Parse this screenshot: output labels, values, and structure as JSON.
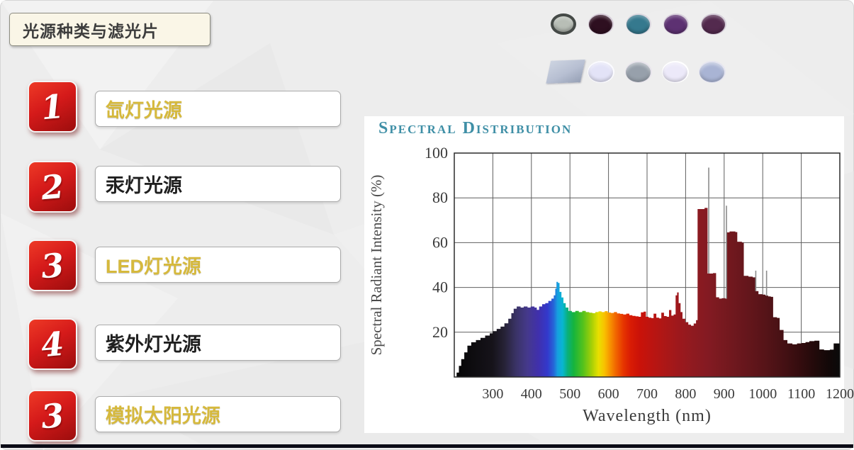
{
  "slide": {
    "title": "光源种类与滤光片",
    "items": [
      {
        "number": "1",
        "label": "氙灯光源",
        "style": "gold"
      },
      {
        "number": "2",
        "label": "汞灯光源",
        "style": "black"
      },
      {
        "number": "3",
        "label": "LED灯光源",
        "style": "gold"
      },
      {
        "number": "4",
        "label": "紫外灯光源",
        "style": "black"
      },
      {
        "number": "3",
        "label": "模拟太阳光源",
        "style": "gold"
      }
    ],
    "colors": {
      "badge_red": "#d51a1a",
      "gold_text": "#d6b93c",
      "black_text": "#1f1f1f",
      "title_teal": "#3f8fa6",
      "bottom_bar": "#0b0b16",
      "background": "#ededed"
    }
  },
  "filters_image": {
    "top_row": [
      {
        "name": "gray-nd-filter",
        "fill": "#b8beb6",
        "ring": "#454a47"
      },
      {
        "name": "dark-maroon-filter",
        "fill": "#2e0f20",
        "ring": "#d6ccd8"
      },
      {
        "name": "teal-filter",
        "fill": "#35798e",
        "ring": "#dcd8e0"
      },
      {
        "name": "purple-filter",
        "fill": "#5d3172",
        "ring": "#d8d0dc"
      },
      {
        "name": "plum-filter",
        "fill": "#532a4e",
        "ring": "#d4ccd8"
      }
    ],
    "bottom_square": {
      "name": "light-blue-square-filter",
      "fill": "#b7bfd2"
    },
    "bottom_row": [
      {
        "name": "pale-lavender-filter",
        "fill": "#e3e3f7",
        "ring": "#fbfbff"
      },
      {
        "name": "gray-blue-filter",
        "fill": "#97a0ab",
        "ring": "#e8e4ec"
      },
      {
        "name": "near-white-filter",
        "fill": "#ece9f9",
        "ring": "#ffffff"
      },
      {
        "name": "periwinkle-filter",
        "fill": "#a9b4d4",
        "ring": "#e4e4f0"
      }
    ]
  },
  "chart_data": {
    "type": "area",
    "title": "Spectral Distribution",
    "xlabel": "Wavelength (nm)",
    "ylabel": "Spectral Radiant Intensity (%)",
    "xlim": [
      200,
      1200
    ],
    "ylim": [
      0,
      100
    ],
    "xticks": [
      300,
      400,
      500,
      600,
      700,
      800,
      900,
      1000,
      1100,
      1200
    ],
    "yticks": [
      20,
      40,
      60,
      80,
      100
    ],
    "grid": true,
    "legend": "none",
    "profile": [
      [
        200,
        0
      ],
      [
        206,
        2
      ],
      [
        212,
        5
      ],
      [
        218,
        8
      ],
      [
        226,
        11
      ],
      [
        234,
        14
      ],
      [
        244,
        15.5
      ],
      [
        256,
        16.5
      ],
      [
        268,
        17.5
      ],
      [
        280,
        18.5
      ],
      [
        292,
        19.5
      ],
      [
        300,
        20.5
      ],
      [
        310,
        21.5
      ],
      [
        320,
        22.5
      ],
      [
        330,
        24
      ],
      [
        340,
        26
      ],
      [
        348,
        28.5
      ],
      [
        354,
        30.5
      ],
      [
        362,
        31.5
      ],
      [
        372,
        31
      ],
      [
        380,
        31.5
      ],
      [
        390,
        31
      ],
      [
        398,
        31.5
      ],
      [
        408,
        31
      ],
      [
        414,
        30
      ],
      [
        420,
        31.5
      ],
      [
        428,
        32.5
      ],
      [
        436,
        33
      ],
      [
        444,
        34
      ],
      [
        452,
        35
      ],
      [
        458,
        36.5
      ],
      [
        462,
        39.5
      ],
      [
        465,
        42.5
      ],
      [
        469,
        42
      ],
      [
        473,
        38
      ],
      [
        478,
        35.5
      ],
      [
        483,
        33
      ],
      [
        489,
        31
      ],
      [
        496,
        29.5
      ],
      [
        505,
        29
      ],
      [
        514,
        29.5
      ],
      [
        523,
        29
      ],
      [
        532,
        29.5
      ],
      [
        541,
        29
      ],
      [
        550,
        28.7
      ],
      [
        558,
        28.5
      ],
      [
        566,
        29
      ],
      [
        574,
        29.3
      ],
      [
        582,
        29
      ],
      [
        590,
        29.4
      ],
      [
        598,
        28.8
      ],
      [
        606,
        28.6
      ],
      [
        614,
        29
      ],
      [
        622,
        28.4
      ],
      [
        630,
        28.2
      ],
      [
        638,
        27.9
      ],
      [
        646,
        28.3
      ],
      [
        654,
        27.6
      ],
      [
        662,
        27.3
      ],
      [
        670,
        27.1
      ],
      [
        678,
        26.9
      ],
      [
        684,
        28.9
      ],
      [
        691,
        29.2
      ],
      [
        697,
        26.9
      ],
      [
        704,
        26.5
      ],
      [
        711,
        26.3
      ],
      [
        717,
        28.3
      ],
      [
        724,
        26.5
      ],
      [
        731,
        26.2
      ],
      [
        737,
        28.7
      ],
      [
        744,
        27.2
      ],
      [
        751,
        26.9
      ],
      [
        757,
        29.9
      ],
      [
        763,
        27.4
      ],
      [
        769,
        27.9
      ],
      [
        774,
        36.5
      ],
      [
        778,
        37.8
      ],
      [
        782,
        33
      ],
      [
        787,
        29
      ],
      [
        792,
        26
      ],
      [
        799,
        24.5
      ],
      [
        807,
        23.4
      ],
      [
        814,
        22.9
      ],
      [
        821,
        23.9
      ],
      [
        827,
        25.4
      ],
      [
        831,
        75
      ],
      [
        849,
        75.5
      ],
      [
        857,
        46.2
      ],
      [
        871,
        46.4
      ],
      [
        879,
        35.6
      ],
      [
        887,
        35
      ],
      [
        894,
        35.2
      ],
      [
        903,
        35
      ],
      [
        907,
        64.6
      ],
      [
        914,
        65
      ],
      [
        929,
        64.7
      ],
      [
        934,
        60.4
      ],
      [
        946,
        60
      ],
      [
        951,
        45.2
      ],
      [
        963,
        44.8
      ],
      [
        974,
        44.5
      ],
      [
        981,
        38.4
      ],
      [
        989,
        37
      ],
      [
        999,
        36.8
      ],
      [
        1007,
        36.4
      ],
      [
        1014,
        36
      ],
      [
        1021,
        35.8
      ],
      [
        1027,
        26.7
      ],
      [
        1037,
        26.4
      ],
      [
        1044,
        21
      ],
      [
        1054,
        16.5
      ],
      [
        1064,
        15
      ],
      [
        1077,
        14.6
      ],
      [
        1089,
        15
      ],
      [
        1101,
        15.2
      ],
      [
        1111,
        15.6
      ],
      [
        1121,
        16
      ],
      [
        1134,
        16.2
      ],
      [
        1147,
        12.3
      ],
      [
        1159,
        12
      ],
      [
        1174,
        12.2
      ],
      [
        1184,
        15
      ],
      [
        1200,
        15.2
      ]
    ],
    "spikes": [
      [
        860,
        46.2,
        93.5
      ],
      [
        906,
        35,
        76.5
      ],
      [
        982,
        38.4,
        47.5
      ],
      [
        1010,
        36.2,
        47.5
      ]
    ],
    "spectrum_stops": [
      [
        200,
        "#060606"
      ],
      [
        300,
        "#16131a"
      ],
      [
        330,
        "#262236"
      ],
      [
        360,
        "#3a3366"
      ],
      [
        390,
        "#45398c"
      ],
      [
        418,
        "#4030ac"
      ],
      [
        442,
        "#3339cc"
      ],
      [
        458,
        "#2566d8"
      ],
      [
        468,
        "#169fe0"
      ],
      [
        481,
        "#08b6d0"
      ],
      [
        494,
        "#0ab07a"
      ],
      [
        510,
        "#16b43c"
      ],
      [
        534,
        "#54c21c"
      ],
      [
        557,
        "#a8d006"
      ],
      [
        574,
        "#e8e000"
      ],
      [
        589,
        "#f8c200"
      ],
      [
        604,
        "#f79300"
      ],
      [
        621,
        "#f06000"
      ],
      [
        639,
        "#e63400"
      ],
      [
        657,
        "#d91c04"
      ],
      [
        679,
        "#cb1208"
      ],
      [
        709,
        "#bd1410"
      ],
      [
        744,
        "#ad1716"
      ],
      [
        779,
        "#9e181c"
      ],
      [
        819,
        "#8f1a20"
      ],
      [
        859,
        "#831a22"
      ],
      [
        899,
        "#77191f"
      ],
      [
        939,
        "#6b171d"
      ],
      [
        979,
        "#5f151a"
      ],
      [
        1019,
        "#521317"
      ],
      [
        1059,
        "#431013"
      ],
      [
        1099,
        "#330c0e"
      ],
      [
        1139,
        "#200a0a"
      ],
      [
        1172,
        "#120808"
      ],
      [
        1200,
        "#0a0a0a"
      ]
    ]
  }
}
